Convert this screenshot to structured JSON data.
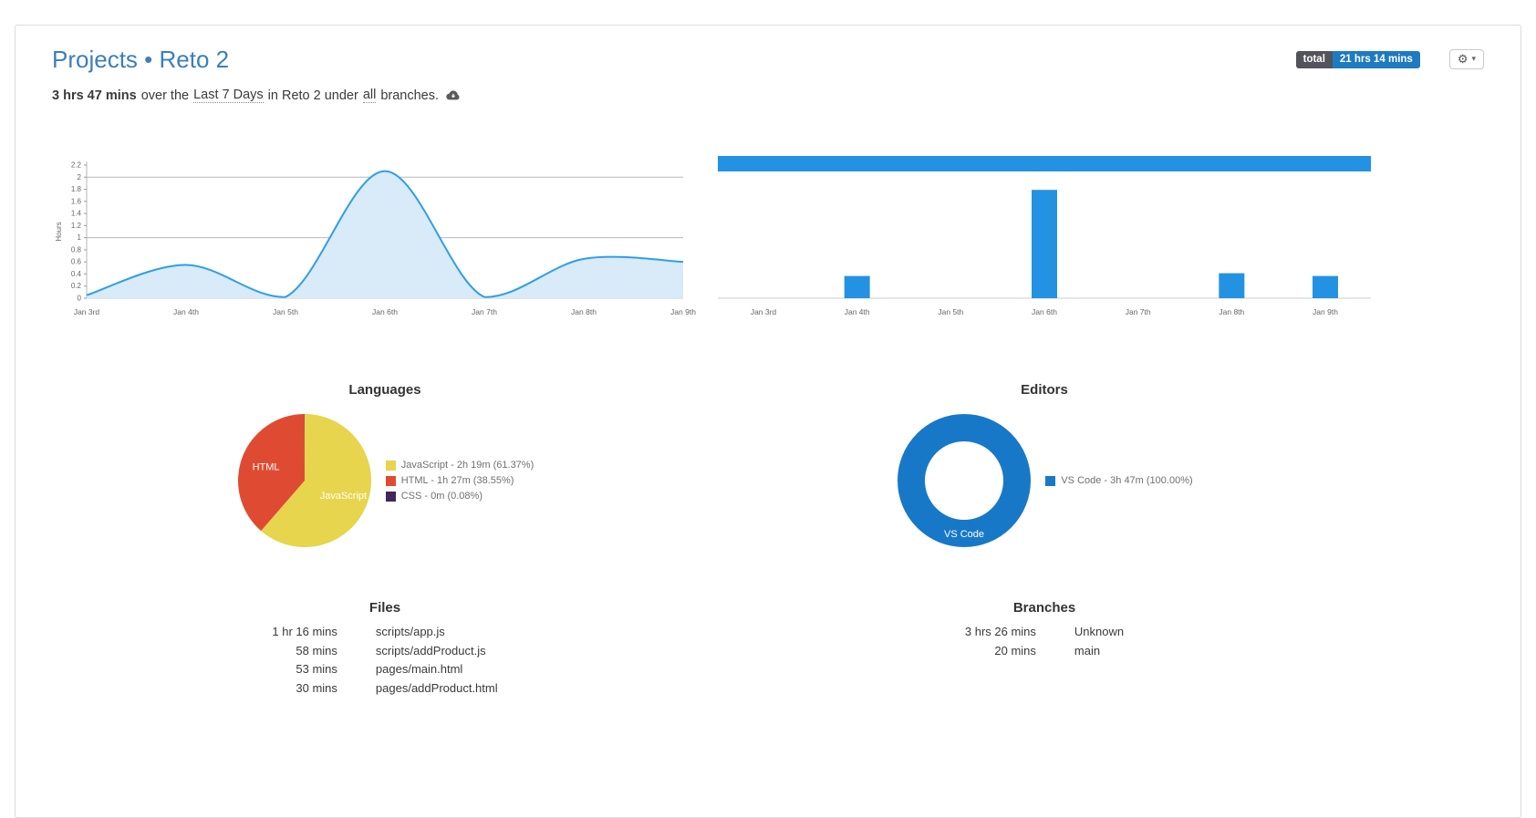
{
  "header": {
    "title_projects": "Projects",
    "title_separator": "•",
    "project_name": "Reto 2",
    "total_badge": {
      "label": "total",
      "value": "21 hrs 14 mins"
    },
    "settings": {
      "gear": "⚙",
      "caret": "▾"
    }
  },
  "summary": {
    "duration": "3 hrs 47 mins",
    "over_the": "over the",
    "range_link": "Last 7 Days",
    "middle": "in Reto 2 under",
    "branches_link": "all",
    "tail": "branches."
  },
  "sections": {
    "languages_title": "Languages",
    "editors_title": "Editors",
    "files_title": "Files",
    "branches_title": "Branches"
  },
  "files": {
    "rows": [
      {
        "time": "1 hr 16 mins",
        "name": "scripts/app.js"
      },
      {
        "time": "58 mins",
        "name": "scripts/addProduct.js"
      },
      {
        "time": "53 mins",
        "name": "pages/main.html"
      },
      {
        "time": "30 mins",
        "name": "pages/addProduct.html"
      }
    ]
  },
  "branches": {
    "rows": [
      {
        "time": "3 hrs 26 mins",
        "name": "Unknown"
      },
      {
        "time": "20 mins",
        "name": "main"
      }
    ]
  },
  "colors": {
    "title_blue": "#3c7ebf",
    "badge_dark": "#53535b",
    "badge_blue": "#1e7ac1",
    "accent_blue": "#2492e2",
    "line_blue": "#2e9fe6",
    "area_fill": "#d9eaf8",
    "pie_yellow": "#e6d54d",
    "pie_red": "#df4b32",
    "pie_purple": "#40285a",
    "donut_blue": "#1878c8",
    "axis_text": "#666666",
    "gridline": "#b9b9b9"
  },
  "chart_data": [
    {
      "name": "daily-hours-line",
      "type": "area",
      "ylabel": "Hours",
      "categories": [
        "Jan 3rd",
        "Jan 4th",
        "Jan 5th",
        "Jan 6th",
        "Jan 7th",
        "Jan 8th",
        "Jan 9th"
      ],
      "values": [
        0.05,
        0.55,
        0.02,
        2.1,
        0.02,
        0.65,
        0.6
      ],
      "ylim": [
        0,
        2.2
      ],
      "yticks": [
        0,
        0.2,
        0.4,
        0.6,
        0.8,
        1,
        1.2,
        1.4,
        1.6,
        1.8,
        2,
        2.2
      ],
      "gridlines": [
        1,
        2
      ],
      "legend": "off"
    },
    {
      "name": "daily-hours-bars",
      "type": "bar",
      "categories": [
        "Jan 3rd",
        "Jan 4th",
        "Jan 5th",
        "Jan 6th",
        "Jan 7th",
        "Jan 8th",
        "Jan 9th"
      ],
      "values": [
        0,
        0.4,
        0,
        1.95,
        0,
        0.45,
        0.4
      ],
      "ylim": [
        0,
        2.2
      ],
      "header_bar_full_width": true,
      "legend": "off"
    },
    {
      "name": "languages",
      "type": "pie",
      "title": "Languages",
      "slices": [
        {
          "label": "JavaScript",
          "percent": 61.37,
          "time": "2h 19m",
          "legend": "JavaScript - 2h 19m (61.37%)",
          "color": "#e6d54d",
          "show_label": true
        },
        {
          "label": "HTML",
          "percent": 38.55,
          "time": "1h 27m",
          "legend": "HTML - 1h 27m (38.55%)",
          "color": "#df4b32",
          "show_label": true
        },
        {
          "label": "CSS",
          "percent": 0.08,
          "time": "0m",
          "legend": "CSS - 0m (0.08%)",
          "color": "#40285a",
          "show_label": false
        }
      ]
    },
    {
      "name": "editors",
      "type": "donut",
      "title": "Editors",
      "slices": [
        {
          "label": "VS Code",
          "percent": 100.0,
          "time": "3h 47m",
          "legend": "VS Code - 3h 47m (100.00%)",
          "color": "#1878c8",
          "show_label": true
        }
      ]
    }
  ]
}
